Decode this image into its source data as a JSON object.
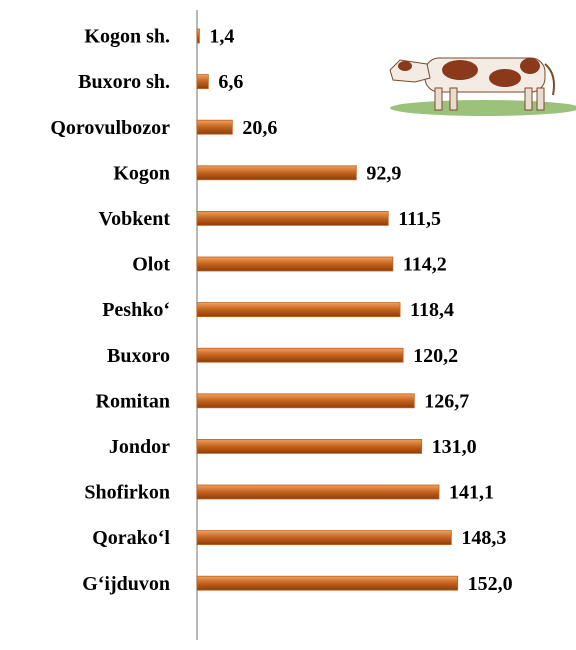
{
  "chart_data": {
    "type": "bar",
    "orientation": "horizontal",
    "categories": [
      "Kogon sh.",
      "Buxoro sh.",
      "Qorovulbozor",
      "Kogon",
      "Vobkent",
      "Olot",
      "Peshko‘",
      "Buxoro",
      "Romitan",
      "Jondor",
      "Shofirkon",
      "Qorako‘l",
      "G‘ijduvon"
    ],
    "values": [
      1.4,
      6.6,
      20.6,
      92.9,
      111.5,
      114.2,
      118.4,
      120.2,
      126.7,
      131.0,
      141.1,
      148.3,
      152.0
    ],
    "value_labels": [
      "1,4",
      "6,6",
      "20,6",
      "92,9",
      "111,5",
      "114,2",
      "118,4",
      "120,2",
      "126,7",
      "131,0",
      "141,1",
      "148,3",
      "152,0"
    ],
    "color": "#c4621c",
    "xlim": [
      0,
      200
    ]
  }
}
